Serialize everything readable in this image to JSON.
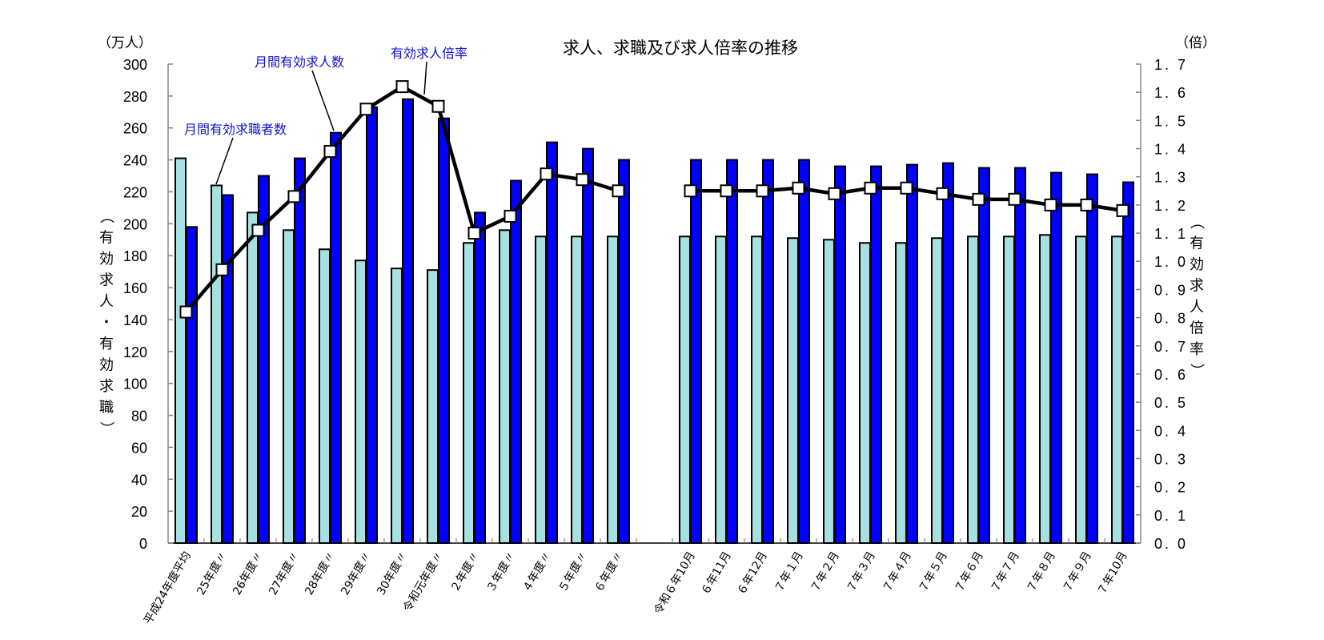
{
  "chart_data": {
    "type": "bar+line",
    "title": "求人、求職及び求人倍率の推移",
    "left_unit": "（万人）",
    "right_unit": "（倍）",
    "ylabel_left": "（有効求人・有効求職）",
    "ylabel_right": "（有効求人倍率）",
    "ylim_left": [
      0,
      300
    ],
    "ylim_right": [
      0.0,
      1.7
    ],
    "yticks_left": [
      "0",
      "20",
      "40",
      "60",
      "80",
      "100",
      "120",
      "140",
      "160",
      "180",
      "200",
      "220",
      "240",
      "260",
      "280",
      "300"
    ],
    "yticks_right": [
      "0.0",
      "0.1",
      "0.2",
      "0.3",
      "0.4",
      "0.5",
      "0.6",
      "0.7",
      "0.8",
      "0.9",
      "1.0",
      "1.1",
      "1.2",
      "1.3",
      "1.4",
      "1.5",
      "1.6",
      "1.7"
    ],
    "categories": [
      "平成24年度平均",
      "25年度〃",
      "26年度〃",
      "27年度〃",
      "28年度〃",
      "29年度〃",
      "30年度〃",
      "令和元年度〃",
      "２年度〃",
      "３年度〃",
      "４年度〃",
      "５年度〃",
      "６年度〃",
      "令和６年10月",
      "６年11月",
      "６年12月",
      "７年１月",
      "７年２月",
      "７年３月",
      "７年４月",
      "７年５月",
      "７年６月",
      "７年７月",
      "７年８月",
      "７年９月",
      "７年10月"
    ],
    "gap_after_index": 12,
    "series": [
      {
        "name": "月間有効求職者数",
        "type": "bar",
        "axis": "left",
        "color": "#a6e0e0",
        "values": [
          241,
          224,
          207,
          196,
          184,
          177,
          172,
          171,
          188,
          196,
          192,
          192,
          192,
          192,
          192,
          192,
          191,
          190,
          188,
          188,
          191,
          192,
          192,
          193,
          192,
          192
        ]
      },
      {
        "name": "月間有効求人数",
        "type": "bar",
        "axis": "left",
        "color": "#0000ff",
        "values": [
          198,
          218,
          230,
          241,
          257,
          273,
          278,
          266,
          207,
          227,
          251,
          247,
          240,
          240,
          240,
          240,
          240,
          236,
          236,
          237,
          238,
          235,
          235,
          232,
          231,
          226
        ]
      },
      {
        "name": "有効求人倍率",
        "type": "line",
        "axis": "right",
        "color": "#000000",
        "values": [
          0.82,
          0.97,
          1.11,
          1.23,
          1.39,
          1.54,
          1.62,
          1.55,
          1.1,
          1.16,
          1.31,
          1.29,
          1.25,
          1.25,
          1.25,
          1.25,
          1.26,
          1.24,
          1.26,
          1.26,
          1.24,
          1.22,
          1.22,
          1.2,
          1.2,
          1.18
        ]
      }
    ],
    "annotations": [
      {
        "text": "月間有効求職者数",
        "series": 0
      },
      {
        "text": "月間有効求人数",
        "series": 1
      },
      {
        "text": "有効求人倍率",
        "series": 2
      }
    ],
    "grid": false,
    "legend": "callout annotations"
  }
}
